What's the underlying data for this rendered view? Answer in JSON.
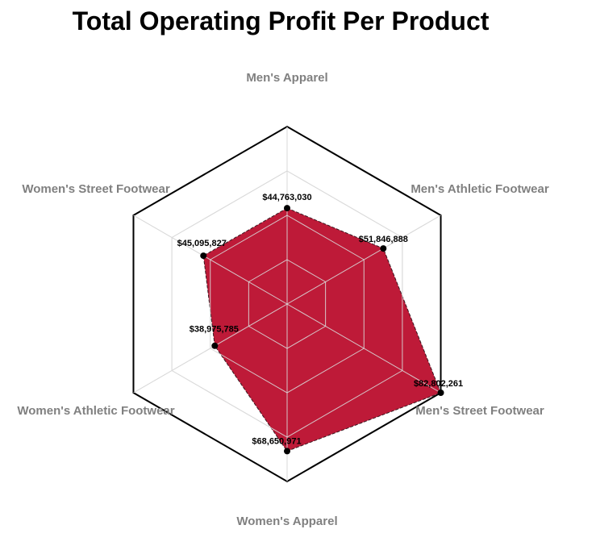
{
  "chart_data": {
    "type": "radar",
    "title": "Total Operating Profit Per Product",
    "categories": [
      "Men's Apparel",
      "Men's Athletic Footwear",
      "Men's Street Footwear",
      "Women's Apparel",
      "Women's Athletic Footwear",
      "Women's Street Footwear"
    ],
    "values": [
      44763030,
      51846888,
      82802261,
      68650971,
      38975785,
      45095827
    ],
    "value_labels": [
      "$44,763,030",
      "$51,846,888",
      "$82,802,261",
      "$68,650,971",
      "$38,975,785",
      "$45,095,827"
    ],
    "rmax": 82802261,
    "grid_levels": 4,
    "grid": true,
    "legend": "none"
  },
  "colors": {
    "fill": "#be1a38",
    "point": "#000000",
    "outer_frame": "#000000",
    "grid": "#d9d9d9",
    "axis_label": "#808080"
  }
}
